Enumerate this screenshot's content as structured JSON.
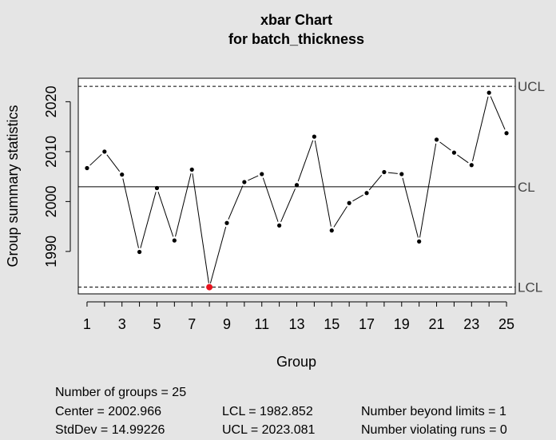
{
  "chart_data": {
    "type": "line",
    "title": "xbar Chart",
    "subtitle": "for batch_thickness",
    "xlabel": "Group",
    "ylabel": "Group summary statistics",
    "x": [
      1,
      2,
      3,
      4,
      5,
      6,
      7,
      8,
      9,
      10,
      11,
      12,
      13,
      14,
      15,
      16,
      17,
      18,
      19,
      20,
      21,
      22,
      23,
      24,
      25
    ],
    "values": [
      2006.7,
      2010.0,
      2005.4,
      1989.9,
      2002.7,
      1992.2,
      2006.4,
      1982.85,
      1995.7,
      2003.9,
      2005.5,
      1995.2,
      2003.3,
      2013.0,
      1994.2,
      1999.7,
      2001.7,
      2005.9,
      2005.5,
      1992.0,
      2012.4,
      2009.8,
      2007.3,
      2021.8,
      2013.7
    ],
    "violations": [
      8
    ],
    "xticks": [
      "1",
      "3",
      "5",
      "7",
      "9",
      "11",
      "13",
      "15",
      "17",
      "19",
      "21",
      "23",
      "25"
    ],
    "yticks": [
      "1990",
      "2000",
      "2010",
      "2020"
    ],
    "xlim": [
      0.5,
      25.5
    ],
    "ylim": [
      1981.5,
      2024.7
    ],
    "center": 2002.966,
    "lcl": 1982.852,
    "ucl": 2023.081,
    "ucl_label": "UCL",
    "cl_label": "CL",
    "lcl_label": "LCL",
    "point_color": "#000000",
    "violation_color": "#e8121d",
    "grid": false
  },
  "stats": {
    "groups": "Number of groups = 25",
    "center": "Center = 2002.966",
    "stddev": "StdDev = 14.99226",
    "lcl": "LCL = 1982.852",
    "ucl": "UCL = 2023.081",
    "beyond": "Number beyond limits = 1",
    "violating": "Number violating runs = 0"
  }
}
